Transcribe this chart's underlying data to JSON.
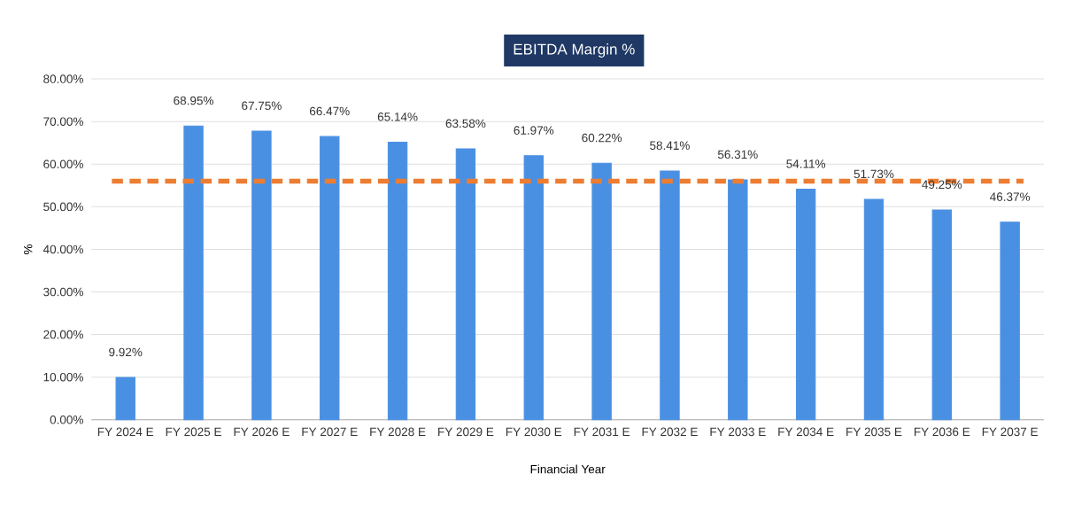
{
  "chart_data": {
    "type": "bar",
    "title": "EBITDA Margin %",
    "xlabel": "Financial Year",
    "ylabel": "%",
    "categories": [
      "FY 2024 E",
      "FY 2025 E",
      "FY 2026 E",
      "FY 2027 E",
      "FY 2028 E",
      "FY 2029 E",
      "FY 2030 E",
      "FY 2031 E",
      "FY 2032 E",
      "FY 2033 E",
      "FY 2034 E",
      "FY 2035 E",
      "FY 2036 E",
      "FY 2037 E"
    ],
    "values": [
      9.92,
      68.95,
      67.75,
      66.47,
      65.14,
      63.58,
      61.97,
      60.22,
      58.41,
      56.31,
      54.11,
      51.73,
      49.25,
      46.37
    ],
    "value_labels": [
      "9.92%",
      "68.95%",
      "67.75%",
      "66.47%",
      "65.14%",
      "63.58%",
      "61.97%",
      "60.22%",
      "58.41%",
      "56.31%",
      "54.11%",
      "51.73%",
      "49.25%",
      "46.37%"
    ],
    "color": "#4a90e2",
    "ylim": [
      0,
      80
    ],
    "yticks": [
      {
        "value": 0,
        "label": "0.00%"
      },
      {
        "value": 10,
        "label": "10.00%"
      },
      {
        "value": 20,
        "label": "20.00%"
      },
      {
        "value": 30,
        "label": "30.00%"
      },
      {
        "value": 40,
        "label": "40.00%"
      },
      {
        "value": 50,
        "label": "50.00%"
      },
      {
        "value": 60,
        "label": "60.00%"
      },
      {
        "value": 70,
        "label": "70.00%"
      },
      {
        "value": 80,
        "label": "80.00%"
      }
    ],
    "grid": "y",
    "ref_lines": [
      {
        "axis": "y",
        "value": 56,
        "color": "#ed7d31",
        "line_style": "dashed"
      }
    ]
  }
}
